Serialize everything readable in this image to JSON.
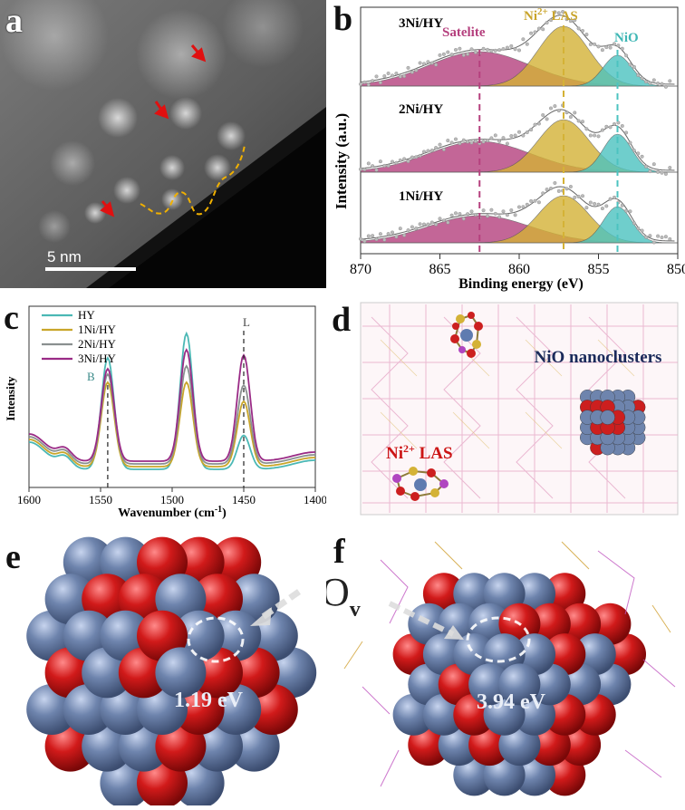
{
  "panel_labels": {
    "a": "a",
    "b": "b",
    "c": "c",
    "d": "d",
    "e": "e",
    "f": "f"
  },
  "panel_a": {
    "scale_bar": "5 nm"
  },
  "panel_b": {
    "ylabel": "Intensity (a.u.)",
    "xlabel": "Binding energy (eV)",
    "series_labels": [
      "3Ni/HY",
      "2Ni/HY",
      "1Ni/HY"
    ],
    "peak_satelite": "Satelite",
    "peak_las_prefix": "Ni",
    "peak_las_sup": "2+",
    "peak_las_suffix": " LAS",
    "peak_nio": "NiO",
    "xticks": [
      "870",
      "865",
      "860",
      "855",
      "850"
    ]
  },
  "panel_c": {
    "ylabel": "Intensity",
    "xlabel_main": "Wavenumber (cm",
    "xlabel_sup": "-1",
    "xlabel_end": ")",
    "legend": [
      "HY",
      "1Ni/HY",
      "2Ni/HY",
      "3Ni/HY"
    ],
    "marker_b": "B",
    "marker_l": "L",
    "xticks": [
      "1600",
      "1550",
      "1500",
      "1450",
      "1400"
    ]
  },
  "panel_d": {
    "nio_label": "NiO nanoclusters",
    "las_prefix": "Ni",
    "las_sup": "2+",
    "las_suffix": " LAS"
  },
  "panel_e": {
    "energy": "1.19 eV"
  },
  "panel_f": {
    "ov_main": "O",
    "ov_sub": "v",
    "energy": "3.94 eV"
  },
  "colors": {
    "satelite": "#b5407e",
    "las": "#d4b236",
    "nio": "#4cc3c0",
    "ni_atom": "#6e84ad",
    "o_atom": "#cc1f1f",
    "hy": "#4bb8b5",
    "ni1": "#c9a62a",
    "ni2": "#8a9090",
    "ni3": "#9a2b86"
  },
  "chart_data": [
    {
      "type": "line",
      "title": "",
      "xlabel": "Binding energy (eV)",
      "ylabel": "Intensity (a.u.)",
      "xlim": [
        870,
        850
      ],
      "series": [
        {
          "name": "3Ni/HY",
          "components": [
            {
              "name": "Satelite",
              "center": 862.5
            },
            {
              "name": "Ni2+ LAS",
              "center": 857.2
            },
            {
              "name": "NiO",
              "center": 853.8
            }
          ]
        },
        {
          "name": "2Ni/HY",
          "components": [
            {
              "name": "Satelite",
              "center": 862.5
            },
            {
              "name": "Ni2+ LAS",
              "center": 857.2
            },
            {
              "name": "NiO",
              "center": 853.8
            }
          ]
        },
        {
          "name": "1Ni/HY",
          "components": [
            {
              "name": "Satelite",
              "center": 862.5
            },
            {
              "name": "Ni2+ LAS",
              "center": 857.2
            },
            {
              "name": "NiO",
              "center": 853.8
            }
          ]
        }
      ]
    },
    {
      "type": "line",
      "title": "",
      "xlabel": "Wavenumber (cm-1)",
      "ylabel": "Intensity",
      "xlim": [
        1600,
        1400
      ],
      "peaks": {
        "B": 1545,
        "L": 1450
      },
      "series": [
        {
          "name": "HY",
          "peak_heights": [
            0.82,
            1.0,
            0.25
          ]
        },
        {
          "name": "1Ni/HY",
          "peak_heights": [
            0.62,
            0.62,
            0.48
          ]
        },
        {
          "name": "2Ni/HY",
          "peak_heights": [
            0.66,
            0.72,
            0.58
          ]
        },
        {
          "name": "3Ni/HY",
          "peak_heights": [
            0.68,
            0.82,
            0.78
          ]
        }
      ],
      "peak_positions": [
        1545,
        1490,
        1450
      ]
    }
  ]
}
